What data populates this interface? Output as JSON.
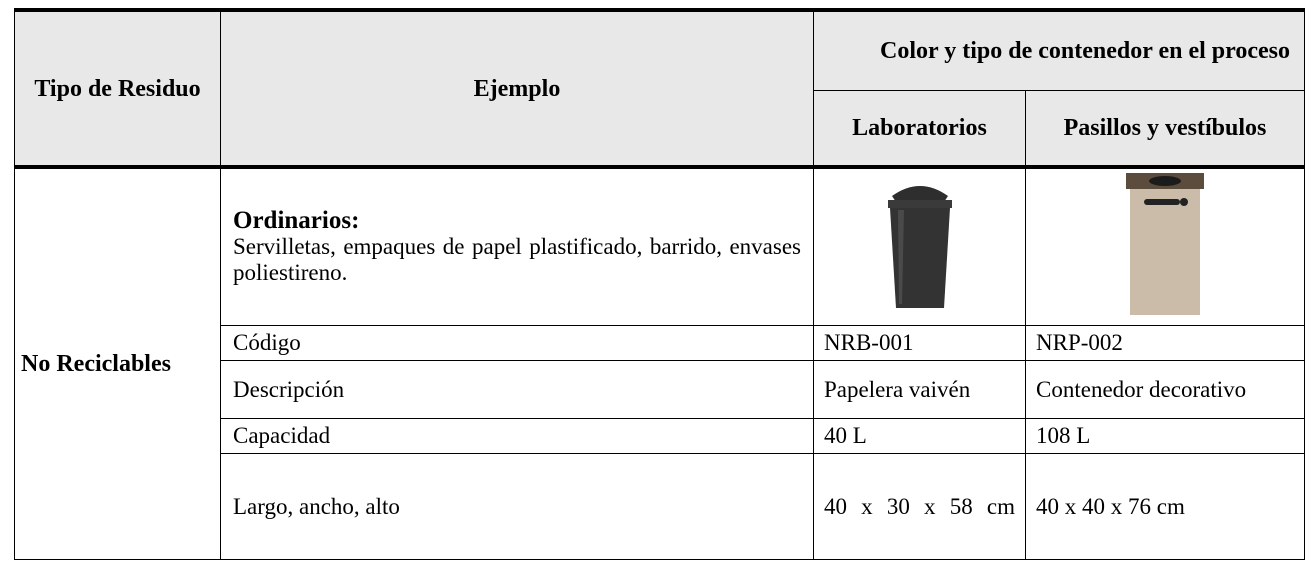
{
  "header": {
    "tipo": "Tipo de Residuo",
    "ejemplo": "Ejemplo",
    "color": "Color y tipo de contenedor en el proceso",
    "laboratorios": "Laboratorios",
    "pasillos": "Pasillos y vestíbulos"
  },
  "body": {
    "tipo": "No Reciclables",
    "ejemplo_title": "Ordinarios:",
    "ejemplo_text": "Servilletas, empaques de papel plastificado, barrido, envases poliestireno.",
    "specs": [
      [
        "Código",
        "NRB-001",
        "NRP-002"
      ],
      [
        "Descripción",
        "Papelera vaivén",
        "Contenedor decorativo"
      ],
      [
        "Capacidad",
        "40 L",
        "108 L"
      ],
      [
        "Largo, ancho, alto",
        "40 x 30 x 58 cm",
        "40 x 40 x 76 cm"
      ]
    ]
  }
}
